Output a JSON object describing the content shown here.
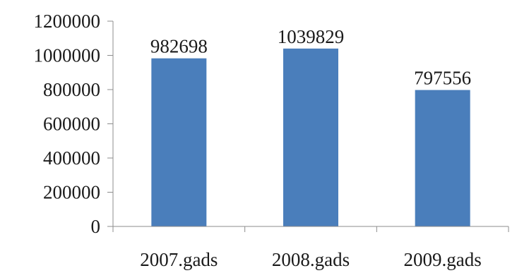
{
  "chart_data": {
    "type": "bar",
    "categories": [
      "2007.gads",
      "2008.gads",
      "2009.gads"
    ],
    "values": [
      982698,
      1039829,
      797556
    ],
    "data_labels": [
      "982698",
      "1039829",
      "797556"
    ],
    "title": "",
    "xlabel": "",
    "ylabel": "",
    "ylim": [
      0,
      1200000
    ],
    "yticks": [
      0,
      200000,
      400000,
      600000,
      800000,
      1000000,
      1200000
    ],
    "ytick_labels": [
      "0",
      "200000",
      "400000",
      "600000",
      "800000",
      "1000000",
      "1200000"
    ],
    "grid": false,
    "legend": "none",
    "colors": {
      "bar": "#4a7ebb",
      "axis": "#8c8c8c",
      "text": "#1a1a1a"
    }
  }
}
